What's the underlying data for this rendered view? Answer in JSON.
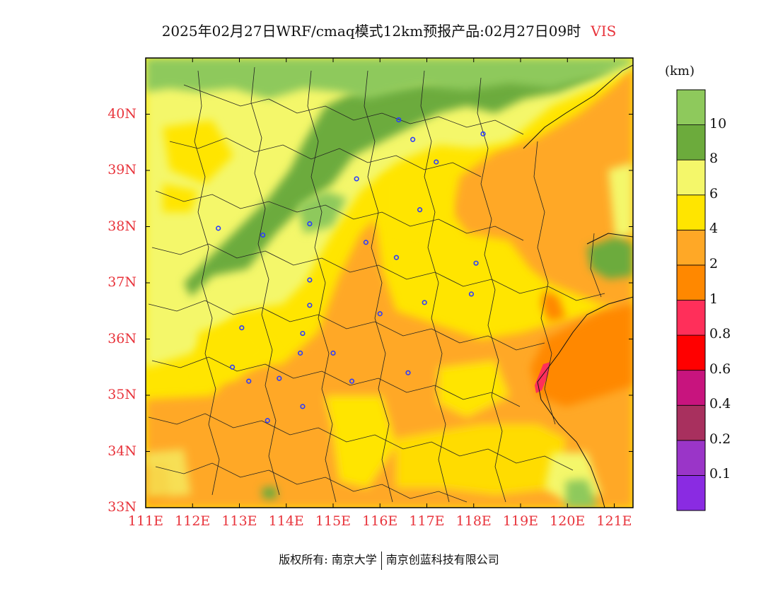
{
  "title": {
    "main": "2025年02月27日WRF/cmaq模式12km预报产品:02月27日09时",
    "variable": "VIS"
  },
  "colors": {
    "label_red": "#e8343c",
    "bins": [
      "#8a2be2",
      "#9a35c8",
      "#a8305e",
      "#c8147e",
      "#ff0000",
      "#ff2f5a",
      "#ff8800",
      "#ffa826",
      "#ffe500",
      "#f4f76a",
      "#6cab3c",
      "#8ec95c"
    ]
  },
  "legend": {
    "unit": "(km)",
    "labels": [
      "10",
      "8",
      "6",
      "4",
      "2",
      "1",
      "0.8",
      "0.6",
      "0.4",
      "0.2",
      "0.1"
    ]
  },
  "map": {
    "lat_labels": [
      "40N",
      "39N",
      "38N",
      "37N",
      "36N",
      "35N",
      "34N",
      "33N"
    ],
    "lon_labels": [
      "111E",
      "112E",
      "113E",
      "114E",
      "115E",
      "116E",
      "117E",
      "118E",
      "119E",
      "120E",
      "121E"
    ],
    "lat_range": [
      33,
      41
    ],
    "lon_range": [
      111,
      121.4
    ],
    "stations": [
      {
        "lon": 116.4,
        "lat": 39.9
      },
      {
        "lon": 116.7,
        "lat": 39.55
      },
      {
        "lon": 118.2,
        "lat": 39.65
      },
      {
        "lon": 117.2,
        "lat": 39.15
      },
      {
        "lon": 115.5,
        "lat": 38.85
      },
      {
        "lon": 116.85,
        "lat": 38.3
      },
      {
        "lon": 112.55,
        "lat": 37.97
      },
      {
        "lon": 113.5,
        "lat": 37.85
      },
      {
        "lon": 114.5,
        "lat": 38.05
      },
      {
        "lon": 115.7,
        "lat": 37.72
      },
      {
        "lon": 116.35,
        "lat": 37.45
      },
      {
        "lon": 118.05,
        "lat": 37.35
      },
      {
        "lon": 114.5,
        "lat": 37.05
      },
      {
        "lon": 117.95,
        "lat": 36.8
      },
      {
        "lon": 116.95,
        "lat": 36.65
      },
      {
        "lon": 114.5,
        "lat": 36.6
      },
      {
        "lon": 116.0,
        "lat": 36.45
      },
      {
        "lon": 113.05,
        "lat": 36.2
      },
      {
        "lon": 114.35,
        "lat": 36.1
      },
      {
        "lon": 114.3,
        "lat": 35.75
      },
      {
        "lon": 115.0,
        "lat": 35.75
      },
      {
        "lon": 112.85,
        "lat": 35.5
      },
      {
        "lon": 113.2,
        "lat": 35.25
      },
      {
        "lon": 113.85,
        "lat": 35.3
      },
      {
        "lon": 115.4,
        "lat": 35.25
      },
      {
        "lon": 116.6,
        "lat": 35.4
      },
      {
        "lon": 114.35,
        "lat": 34.8
      },
      {
        "lon": 113.6,
        "lat": 34.55
      }
    ]
  },
  "footer": {
    "left": "版权所有: 南京大学",
    "right": "南京创蓝科技有限公司"
  }
}
